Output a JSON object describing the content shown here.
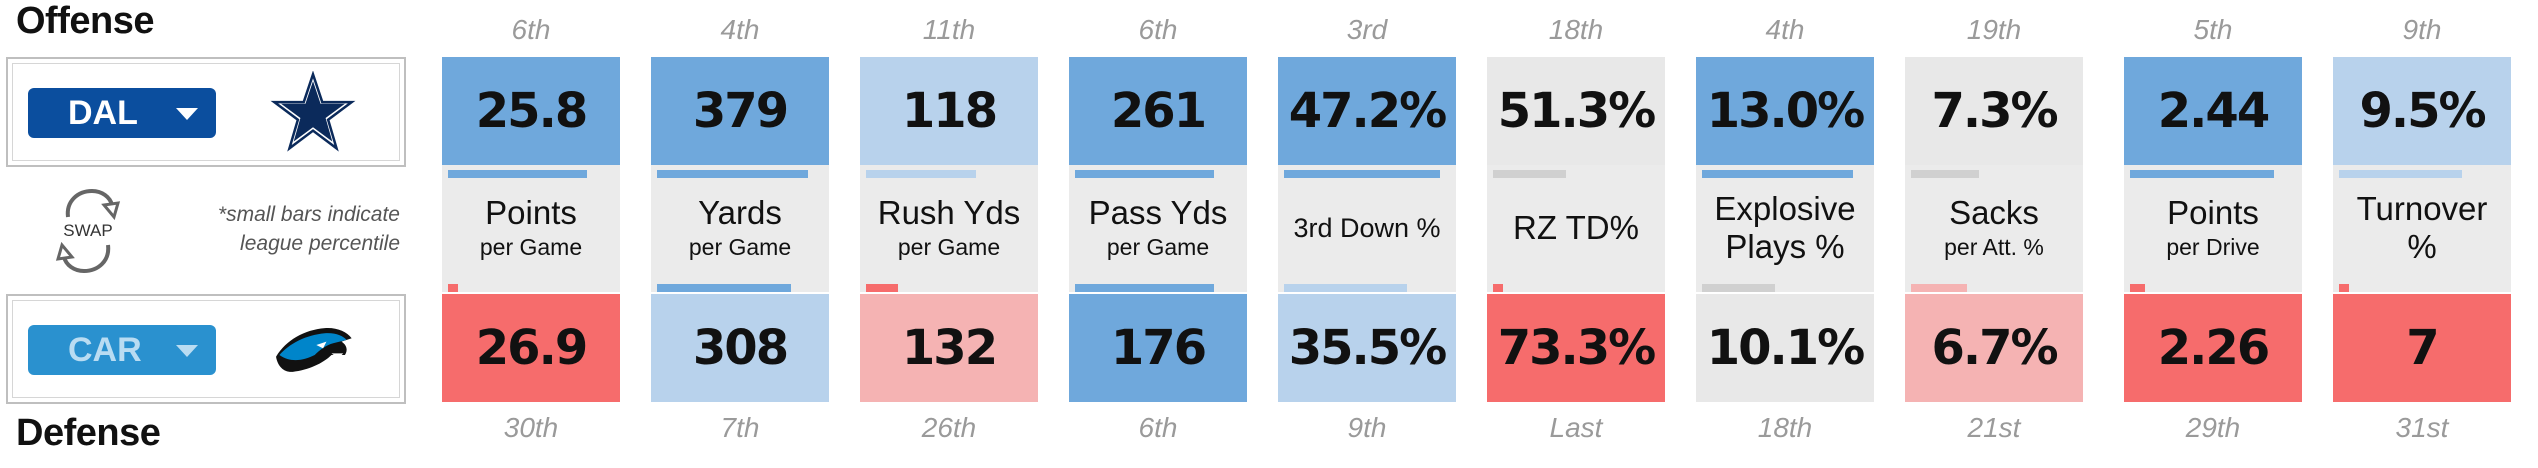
{
  "headings": {
    "offense": "Offense",
    "defense": "Defense"
  },
  "teams": {
    "offense": {
      "abbr": "DAL",
      "logo_icon": "cowboys-star-icon"
    },
    "defense": {
      "abbr": "CAR",
      "logo_icon": "panthers-logo-icon"
    }
  },
  "swap_label": "SWAP",
  "note": [
    "*small bars indicate",
    "league percentile"
  ],
  "colors": {
    "tier1": "#6fa8dc",
    "tier2": "#b8d2ec",
    "neutral": "#e8e8e8",
    "tier4": "#f5b3b3",
    "tier5": "#f66c6c",
    "dal_blue": "#0b4e9e",
    "car_blue": "#2a91cf"
  },
  "stats": [
    {
      "line1": "Points",
      "line2": "per Game",
      "offense": {
        "value": "25.8",
        "rank": "6th",
        "percentile": 0.84,
        "color": "#6fa8dc",
        "bar_color": "#6fa8dc"
      },
      "defense": {
        "value": "26.9",
        "rank": "30th",
        "percentile": 0.06,
        "color": "#f66c6c",
        "bar_color": "#f66c6c"
      }
    },
    {
      "line1": "Yards",
      "line2": "per Game",
      "offense": {
        "value": "379",
        "rank": "4th",
        "percentile": 0.91,
        "color": "#6fa8dc",
        "bar_color": "#6fa8dc"
      },
      "defense": {
        "value": "308",
        "rank": "7th",
        "percentile": 0.81,
        "color": "#b8d2ec",
        "bar_color": "#6fa8dc"
      }
    },
    {
      "line1": "Rush Yds",
      "line2": "per Game",
      "offense": {
        "value": "118",
        "rank": "11th",
        "percentile": 0.66,
        "color": "#b8d2ec",
        "bar_color": "#b8d2ec"
      },
      "defense": {
        "value": "132",
        "rank": "26th",
        "percentile": 0.19,
        "color": "#f5b3b3",
        "bar_color": "#f66c6c"
      }
    },
    {
      "line1": "Pass Yds",
      "line2": "per Game",
      "offense": {
        "value": "261",
        "rank": "6th",
        "percentile": 0.84,
        "color": "#6fa8dc",
        "bar_color": "#6fa8dc"
      },
      "defense": {
        "value": "176",
        "rank": "6th",
        "percentile": 0.84,
        "color": "#6fa8dc",
        "bar_color": "#6fa8dc"
      }
    },
    {
      "line1": "3rd Down %",
      "line2": "",
      "offense": {
        "value": "47.2%",
        "rank": "3rd",
        "percentile": 0.94,
        "color": "#6fa8dc",
        "bar_color": "#6fa8dc"
      },
      "defense": {
        "value": "35.5%",
        "rank": "9th",
        "percentile": 0.74,
        "color": "#b8d2ec",
        "bar_color": "#b8d2ec"
      }
    },
    {
      "line1": "RZ TD%",
      "line2": "",
      "offense": {
        "value": "51.3%",
        "rank": "18th",
        "percentile": 0.44,
        "color": "#e8e8e8",
        "bar_color": "#d0d0d0"
      },
      "defense": {
        "value": "73.3%",
        "rank": "Last",
        "percentile": 0.0,
        "color": "#f66c6c",
        "bar_color": "#f66c6c"
      }
    },
    {
      "line1": "Explosive",
      "line2": "Plays %",
      "line2_large": true,
      "offense": {
        "value": "13.0%",
        "rank": "4th",
        "percentile": 0.91,
        "color": "#6fa8dc",
        "bar_color": "#6fa8dc"
      },
      "defense": {
        "value": "10.1%",
        "rank": "18th",
        "percentile": 0.44,
        "color": "#e8e8e8",
        "bar_color": "#d0d0d0"
      }
    },
    {
      "line1": "Sacks",
      "line2": "per Att. %",
      "offense": {
        "value": "7.3%",
        "rank": "19th",
        "percentile": 0.41,
        "color": "#e8e8e8",
        "bar_color": "#d0d0d0"
      },
      "defense": {
        "value": "6.7%",
        "rank": "21st",
        "percentile": 0.34,
        "color": "#f5b3b3",
        "bar_color": "#f5b3b3"
      }
    },
    {
      "line1": "Points",
      "line2": "per Drive",
      "offense": {
        "value": "2.44",
        "rank": "5th",
        "percentile": 0.87,
        "color": "#6fa8dc",
        "bar_color": "#6fa8dc"
      },
      "defense": {
        "value": "2.26",
        "rank": "29th",
        "percentile": 0.09,
        "color": "#f66c6c",
        "bar_color": "#f66c6c"
      }
    },
    {
      "line1": "Turnover",
      "line2": "%",
      "line2_large": true,
      "offense": {
        "value": "9.5%",
        "rank": "9th",
        "percentile": 0.74,
        "color": "#b8d2ec",
        "bar_color": "#b8d2ec"
      },
      "defense": {
        "value": "7",
        "rank": "31st",
        "percentile": 0.03,
        "color": "#f66c6c",
        "bar_color": "#f66c6c"
      }
    }
  ]
}
